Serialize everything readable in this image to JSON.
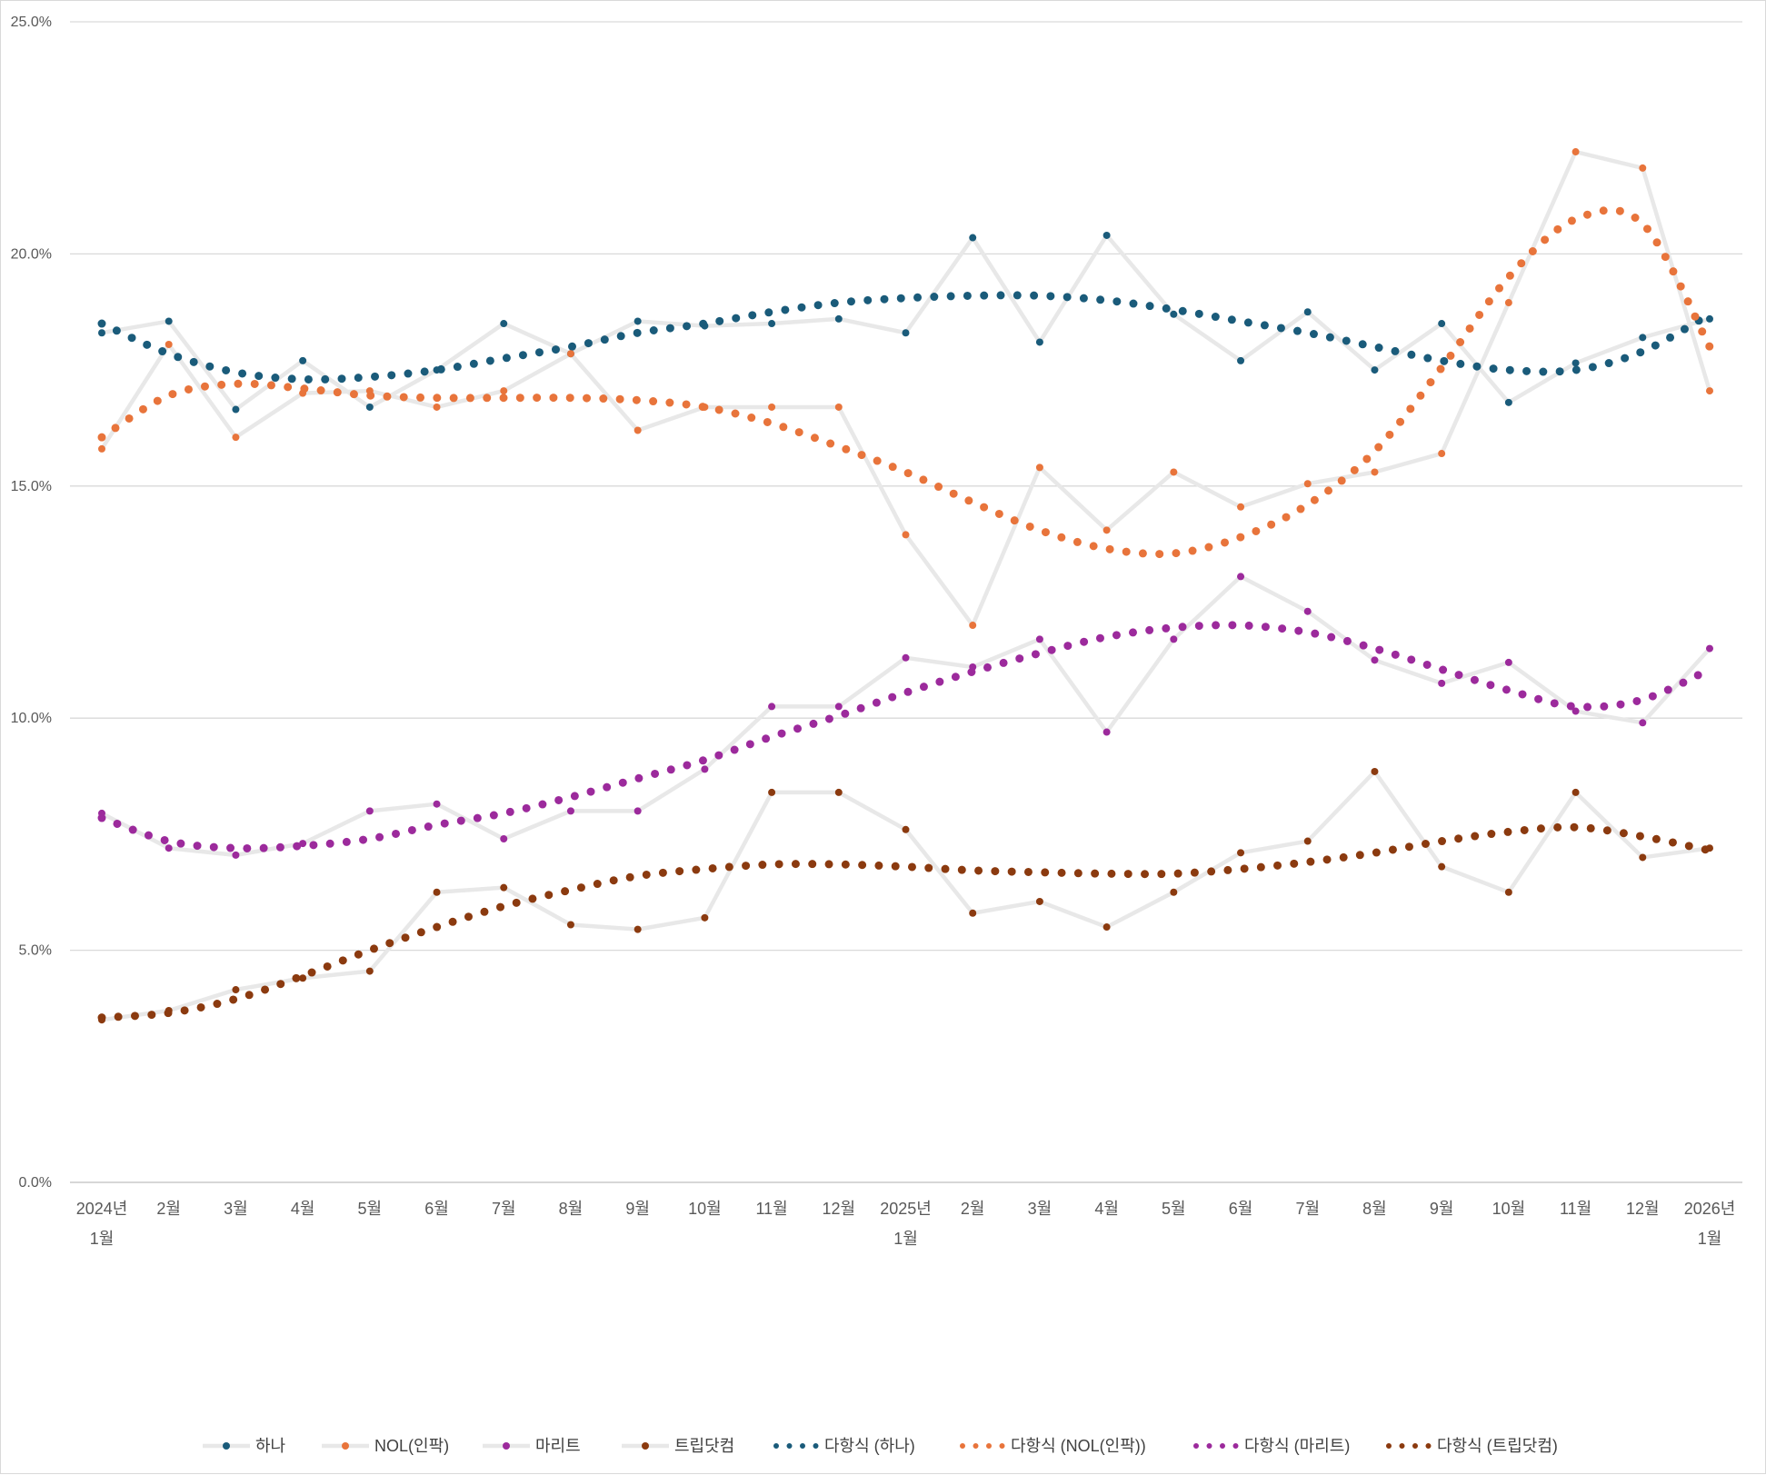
{
  "chart_data": {
    "type": "line",
    "title": "",
    "xlabel": "",
    "ylabel": "",
    "ylim": [
      0,
      25
    ],
    "y_ticks": [
      "0.0%",
      "5.0%",
      "10.0%",
      "15.0%",
      "20.0%",
      "25.0%"
    ],
    "y_tick_values": [
      0,
      5,
      10,
      15,
      20,
      25
    ],
    "grid": true,
    "legend_position": "bottom",
    "categories": [
      "2024년 1월",
      "2월",
      "3월",
      "4월",
      "5월",
      "6월",
      "7월",
      "8월",
      "9월",
      "10월",
      "11월",
      "12월",
      "2025년 1월",
      "2월",
      "3월",
      "4월",
      "5월",
      "6월",
      "7월",
      "8월",
      "9월",
      "10월",
      "11월",
      "12월",
      "2026년 1월"
    ],
    "x_labels": [
      [
        "2024년",
        "1월"
      ],
      [
        "2월"
      ],
      [
        "3월"
      ],
      [
        "4월"
      ],
      [
        "5월"
      ],
      [
        "6월"
      ],
      [
        "7월"
      ],
      [
        "8월"
      ],
      [
        "9월"
      ],
      [
        "10월"
      ],
      [
        "11월"
      ],
      [
        "12월"
      ],
      [
        "2025년",
        "1월"
      ],
      [
        "2월"
      ],
      [
        "3월"
      ],
      [
        "4월"
      ],
      [
        "5월"
      ],
      [
        "6월"
      ],
      [
        "7월"
      ],
      [
        "8월"
      ],
      [
        "9월"
      ],
      [
        "10월"
      ],
      [
        "11월"
      ],
      [
        "12월"
      ],
      [
        "2026년",
        "1월"
      ]
    ],
    "series": [
      {
        "name": "하나",
        "color": "#1a5b7a",
        "line_color": "#e8e8e8",
        "values": [
          18.3,
          18.55,
          16.65,
          17.7,
          16.7,
          17.5,
          18.5,
          17.85,
          18.55,
          18.45,
          18.5,
          18.6,
          18.3,
          20.35,
          18.1,
          20.4,
          18.7,
          17.7,
          18.75,
          17.5,
          18.5,
          16.8,
          17.65,
          18.2,
          18.6
        ]
      },
      {
        "name": "NOL(인팍)",
        "color": "#e8743b",
        "line_color": "#e8e8e8",
        "values": [
          15.8,
          18.05,
          16.05,
          17.0,
          17.05,
          16.7,
          17.05,
          17.85,
          16.2,
          16.7,
          16.7,
          16.7,
          13.95,
          12.0,
          15.4,
          14.05,
          15.3,
          14.55,
          15.05,
          15.3,
          15.7,
          18.95,
          22.2,
          21.85,
          17.05
        ]
      },
      {
        "name": "마리트",
        "color": "#9c2a9c",
        "line_color": "#e8e8e8",
        "values": [
          7.95,
          7.2,
          7.05,
          7.3,
          8.0,
          8.15,
          7.4,
          8.0,
          8.0,
          8.9,
          10.25,
          10.25,
          11.3,
          11.1,
          11.7,
          9.7,
          11.7,
          13.05,
          12.3,
          11.25,
          10.75,
          11.2,
          10.15,
          9.9,
          11.5
        ]
      },
      {
        "name": "트립닷컴",
        "color": "#8b3a0f",
        "line_color": "#e8e8e8",
        "values": [
          3.5,
          3.7,
          4.15,
          4.4,
          4.55,
          6.25,
          6.35,
          5.55,
          5.45,
          5.7,
          8.4,
          8.4,
          7.6,
          5.8,
          6.05,
          5.5,
          6.25,
          7.1,
          7.35,
          8.85,
          6.8,
          6.25,
          8.4,
          7.0,
          7.2
        ]
      }
    ],
    "trendlines": [
      {
        "name": "다항식 (하나)",
        "color": "#1a5b7a",
        "values": [
          18.5,
          17.85,
          17.45,
          17.3,
          17.35,
          17.5,
          17.75,
          18.0,
          18.3,
          18.5,
          18.75,
          18.95,
          19.05,
          19.1,
          19.1,
          19.0,
          18.8,
          18.55,
          18.3,
          18.0,
          17.7,
          17.5,
          17.5,
          17.9,
          18.7
        ]
      },
      {
        "name": "다항식 (NOL(인팍))",
        "color": "#e8743b",
        "values": [
          16.05,
          16.95,
          17.2,
          17.1,
          16.95,
          16.9,
          16.9,
          16.9,
          16.85,
          16.7,
          16.35,
          15.85,
          15.3,
          14.65,
          14.05,
          13.65,
          13.55,
          13.9,
          14.6,
          15.75,
          17.55,
          19.5,
          20.75,
          20.65,
          18.0
        ]
      },
      {
        "name": "다항식 (마리트)",
        "color": "#9c2a9c",
        "values": [
          7.85,
          7.35,
          7.2,
          7.25,
          7.4,
          7.7,
          7.95,
          8.3,
          8.7,
          9.1,
          9.6,
          10.05,
          10.55,
          11.0,
          11.4,
          11.75,
          11.95,
          12.0,
          11.85,
          11.5,
          11.05,
          10.6,
          10.25,
          10.4,
          11.05
        ]
      },
      {
        "name": "다항식 (트립닷컴)",
        "color": "#8b3a0f",
        "values": [
          3.55,
          3.65,
          3.95,
          4.45,
          5.0,
          5.5,
          5.95,
          6.3,
          6.6,
          6.75,
          6.85,
          6.85,
          6.8,
          6.72,
          6.68,
          6.65,
          6.65,
          6.75,
          6.9,
          7.1,
          7.35,
          7.55,
          7.65,
          7.45,
          7.15
        ]
      }
    ],
    "legend": [
      {
        "label": "하나",
        "kind": "line-marker",
        "color": "#1a5b7a"
      },
      {
        "label": "NOL(인팍)",
        "kind": "line-marker",
        "color": "#e8743b"
      },
      {
        "label": "마리트",
        "kind": "line-marker",
        "color": "#9c2a9c"
      },
      {
        "label": "트립닷컴",
        "kind": "line-marker",
        "color": "#8b3a0f"
      },
      {
        "label": "다항식 (하나)",
        "kind": "dots",
        "color": "#1a5b7a"
      },
      {
        "label": "다항식 (NOL(인팍))",
        "kind": "dots",
        "color": "#e8743b"
      },
      {
        "label": "다항식 (마리트)",
        "kind": "dots",
        "color": "#9c2a9c"
      },
      {
        "label": "다항식 (트립닷컴)",
        "kind": "dots",
        "color": "#8b3a0f"
      }
    ]
  }
}
